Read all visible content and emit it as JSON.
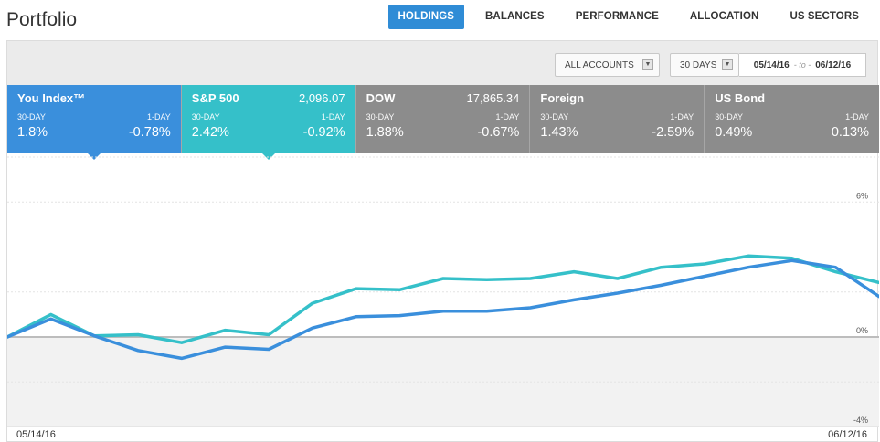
{
  "page": {
    "title": "Portfolio"
  },
  "nav": {
    "tabs": [
      {
        "label": "HOLDINGS",
        "active": true
      },
      {
        "label": "BALANCES",
        "active": false
      },
      {
        "label": "PERFORMANCE",
        "active": false
      },
      {
        "label": "ALLOCATION",
        "active": false
      },
      {
        "label": "US SECTORS",
        "active": false
      }
    ]
  },
  "toolbar": {
    "accounts_select": "ALL ACCOUNTS",
    "days_select": "30 DAYS",
    "date_from": "05/14/16",
    "date_sep": "- to -",
    "date_to": "06/12/16"
  },
  "cards": [
    {
      "name": "You Index™",
      "price": "",
      "l30": "30-DAY",
      "l1": "1-DAY",
      "v30": "1.8%",
      "v1": "-0.78%",
      "selected": true
    },
    {
      "name": "S&P 500",
      "price": "2,096.07",
      "l30": "30-DAY",
      "l1": "1-DAY",
      "v30": "2.42%",
      "v1": "-0.92%",
      "selected": true
    },
    {
      "name": "DOW",
      "price": "17,865.34",
      "l30": "30-DAY",
      "l1": "1-DAY",
      "v30": "1.88%",
      "v1": "-0.67%",
      "selected": false
    },
    {
      "name": "Foreign",
      "price": "",
      "l30": "30-DAY",
      "l1": "1-DAY",
      "v30": "1.43%",
      "v1": "-2.59%",
      "selected": false
    },
    {
      "name": "US Bond",
      "price": "",
      "l30": "30-DAY",
      "l1": "1-DAY",
      "v30": "0.49%",
      "v1": "0.13%",
      "selected": false
    }
  ],
  "colors": {
    "you_index": "#3a8fdc",
    "sp500": "#35c0c9",
    "inactive_card": "#8c8c8c",
    "active_tab": "#2f8cd6"
  },
  "chart_data": {
    "type": "line",
    "ylim": [
      -4,
      8
    ],
    "ytick_labels": [
      {
        "value": 6,
        "label": "6%"
      },
      {
        "value": 0,
        "label": "0%"
      },
      {
        "value": -4,
        "label": "-4%"
      }
    ],
    "gridlines": [
      8,
      6,
      4,
      2,
      0,
      -2
    ],
    "x_start_label": "05/14/16",
    "x_end_label": "06/12/16",
    "series": [
      {
        "name": "You Index™",
        "color": "#3a8fdc",
        "values": [
          0,
          0.8,
          0.05,
          -0.6,
          -0.95,
          -0.45,
          -0.55,
          0.4,
          0.9,
          0.95,
          1.15,
          1.15,
          1.3,
          1.65,
          1.95,
          2.3,
          2.7,
          3.1,
          3.4,
          3.1,
          1.8
        ]
      },
      {
        "name": "S&P 500",
        "color": "#35c0c9",
        "values": [
          0,
          1.0,
          0.05,
          0.1,
          -0.25,
          0.3,
          0.1,
          1.5,
          2.15,
          2.1,
          2.6,
          2.55,
          2.6,
          2.9,
          2.6,
          3.1,
          3.25,
          3.6,
          3.5,
          2.9,
          2.42
        ]
      }
    ]
  }
}
